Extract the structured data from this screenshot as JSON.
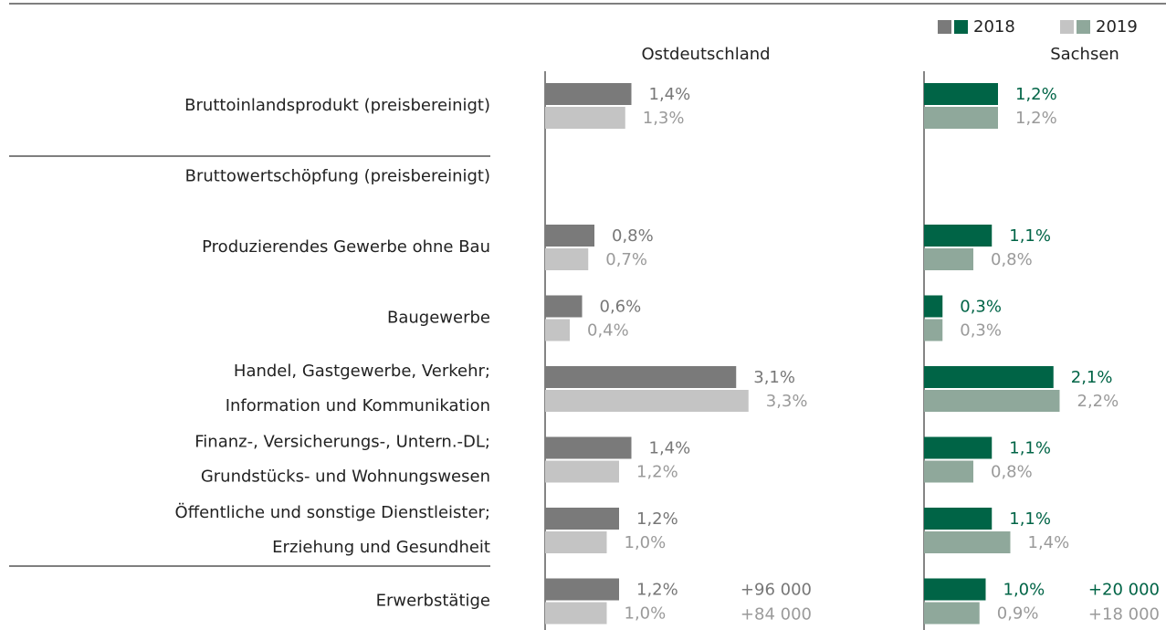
{
  "chart_data": {
    "type": "bar",
    "orientation": "horizontal",
    "xlim": [
      0,
      4
    ],
    "categories": [
      [
        "Bruttoinlandsprodukt (preisbereinigt)"
      ],
      [
        "Bruttowertschöpfung (preisbereinigt)"
      ],
      [
        "Produzierendes Gewerbe ohne Bau"
      ],
      [
        "Baugewerbe"
      ],
      [
        "Handel, Gastgewerbe, Verkehr;",
        "Information und Kommunikation"
      ],
      [
        "Finanz-, Versicherungs-, Untern.-DL;",
        "Grundstücks- und Wohnungswesen"
      ],
      [
        "Öffentliche und sonstige Dienstleister;",
        "Erziehung und Gesundheit"
      ],
      [
        "Erwerbstätige"
      ]
    ],
    "legend": [
      "2018",
      "2019"
    ],
    "panels": [
      {
        "title": "Ostdeutschland",
        "series": [
          {
            "color": "#7a7a7a",
            "label_color": "#777777",
            "values": [
              1.4,
              null,
              0.8,
              0.6,
              3.1,
              1.4,
              1.2,
              1.2
            ],
            "value_labels": [
              "1,4%",
              null,
              "0,8%",
              "0,6%",
              "3,1%",
              "1,4%",
              "1,2%",
              "1,2%"
            ]
          },
          {
            "color": "#c4c4c4",
            "label_color": "#9a9a9a",
            "values": [
              1.3,
              null,
              0.7,
              0.4,
              3.3,
              1.2,
              1.0,
              1.0
            ],
            "value_labels": [
              "1,3%",
              null,
              "0,7%",
              "0,4%",
              "3,3%",
              "1,2%",
              "1,0%",
              "1,0%"
            ]
          }
        ],
        "annotations": [
          "+96 000",
          "+84 000"
        ]
      },
      {
        "title": "Sachsen",
        "series": [
          {
            "color": "#006446",
            "label_color": "#006446",
            "values": [
              1.2,
              null,
              1.1,
              0.3,
              2.1,
              1.1,
              1.1,
              1.0
            ],
            "value_labels": [
              "1,2%",
              null,
              "1,1%",
              "0,3%",
              "2,1%",
              "1,1%",
              "1,1%",
              "1,0%"
            ]
          },
          {
            "color": "#8fa89b",
            "label_color": "#9a9a9a",
            "values": [
              1.2,
              null,
              0.8,
              0.3,
              2.2,
              0.8,
              1.4,
              0.9
            ],
            "value_labels": [
              "1,2%",
              null,
              "0,8%",
              "0,3%",
              "2,2%",
              "0,8%",
              "1,4%",
              "0,9%"
            ]
          }
        ],
        "annotations": [
          "+20 000",
          "+18 000"
        ]
      }
    ]
  }
}
